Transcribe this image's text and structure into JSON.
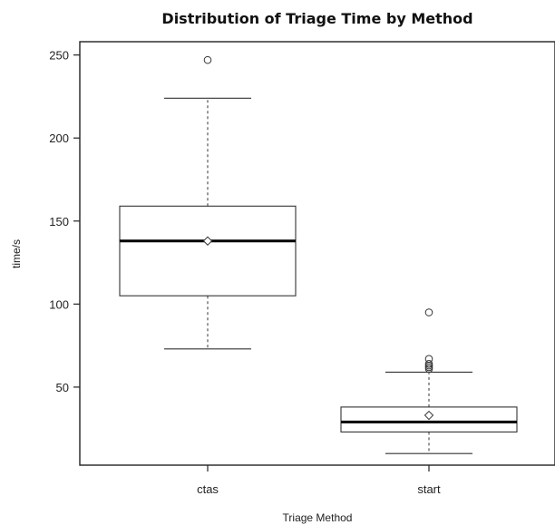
{
  "chart_data": {
    "type": "boxplot",
    "title": "Distribution of Triage Time by Method",
    "xlabel": "Triage Method",
    "ylabel": "time/s",
    "categories": [
      "ctas",
      "start"
    ],
    "y_ticks": [
      50,
      100,
      150,
      200,
      250
    ],
    "ylim": [
      3,
      258
    ],
    "grid": false,
    "legend": "none",
    "boxes": [
      {
        "category": "ctas",
        "whisker_low": 73,
        "q1": 105,
        "median": 138,
        "mean": 138,
        "q3": 159,
        "whisker_high": 224,
        "outliers": [
          247
        ]
      },
      {
        "category": "start",
        "whisker_low": 10,
        "q1": 23,
        "median": 29,
        "mean": 33,
        "q3": 38,
        "whisker_high": 59,
        "outliers": [
          61,
          62,
          63,
          64,
          67,
          95
        ]
      }
    ]
  }
}
